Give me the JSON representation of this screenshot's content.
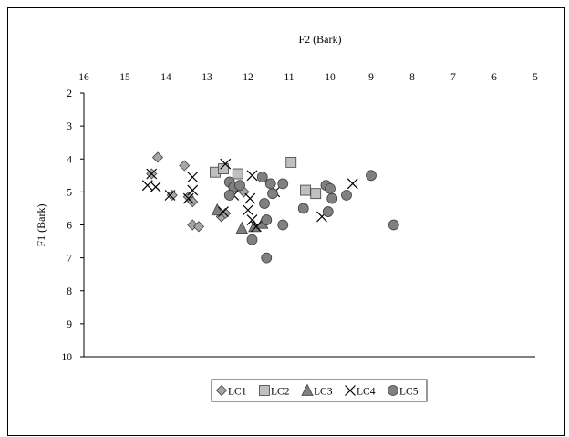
{
  "chart_data": {
    "type": "scatter",
    "title": "",
    "xlabel": "F2 (Bark)",
    "ylabel": "F1 (Bark)",
    "xlim": [
      16,
      5
    ],
    "ylim": [
      10,
      2
    ],
    "x_reversed": true,
    "y_reversed": true,
    "x_axis_position": "top",
    "xticks": [
      16,
      15,
      14,
      13,
      12,
      11,
      10,
      9,
      8,
      7,
      6,
      5
    ],
    "yticks": [
      2,
      3,
      4,
      5,
      6,
      7,
      8,
      9,
      10
    ],
    "grid": false,
    "legend_position": "bottom-center",
    "series": [
      {
        "name": "LC1",
        "marker": "diamond",
        "color": "#a6a6a6",
        "points": [
          [
            14.2,
            3.95
          ],
          [
            14.35,
            4.45
          ],
          [
            13.55,
            4.2
          ],
          [
            13.85,
            5.1
          ],
          [
            13.45,
            5.15
          ],
          [
            13.35,
            5.3
          ],
          [
            13.35,
            6.0
          ],
          [
            13.2,
            6.05
          ],
          [
            12.65,
            5.75
          ],
          [
            12.55,
            5.65
          ],
          [
            12.1,
            5.0
          ]
        ]
      },
      {
        "name": "LC2",
        "marker": "square",
        "color": "#bfbfbf",
        "points": [
          [
            12.8,
            4.4
          ],
          [
            12.6,
            4.3
          ],
          [
            12.25,
            4.45
          ],
          [
            10.95,
            4.1
          ],
          [
            10.6,
            4.95
          ],
          [
            10.35,
            5.05
          ]
        ]
      },
      {
        "name": "LC3",
        "marker": "triangle",
        "color": "#7f7f7f",
        "points": [
          [
            12.75,
            5.55
          ],
          [
            12.15,
            6.1
          ],
          [
            11.85,
            6.05
          ],
          [
            11.65,
            5.95
          ]
        ]
      },
      {
        "name": "LC4",
        "marker": "x",
        "color": "#000000",
        "points": [
          [
            14.35,
            4.45
          ],
          [
            14.25,
            4.85
          ],
          [
            14.45,
            4.8
          ],
          [
            13.9,
            5.1
          ],
          [
            13.35,
            4.55
          ],
          [
            13.35,
            4.95
          ],
          [
            13.45,
            5.2
          ],
          [
            12.55,
            4.15
          ],
          [
            12.35,
            5.1
          ],
          [
            12.6,
            5.6
          ],
          [
            11.9,
            4.5
          ],
          [
            11.95,
            5.2
          ],
          [
            12.0,
            5.55
          ],
          [
            11.9,
            5.85
          ],
          [
            11.8,
            6.05
          ],
          [
            11.35,
            5.0
          ],
          [
            10.2,
            5.75
          ],
          [
            9.45,
            4.75
          ]
        ]
      },
      {
        "name": "LC5",
        "marker": "circle",
        "color": "#808080",
        "points": [
          [
            12.45,
            4.7
          ],
          [
            12.35,
            4.85
          ],
          [
            12.2,
            4.8
          ],
          [
            12.45,
            5.1
          ],
          [
            11.65,
            4.55
          ],
          [
            11.45,
            4.75
          ],
          [
            11.4,
            5.05
          ],
          [
            11.15,
            4.75
          ],
          [
            11.6,
            5.35
          ],
          [
            11.55,
            5.85
          ],
          [
            11.15,
            6.0
          ],
          [
            11.9,
            6.45
          ],
          [
            11.55,
            7.0
          ],
          [
            10.65,
            5.5
          ],
          [
            10.1,
            4.8
          ],
          [
            10.0,
            4.9
          ],
          [
            9.95,
            5.2
          ],
          [
            9.6,
            5.1
          ],
          [
            10.05,
            5.6
          ],
          [
            9.0,
            4.5
          ],
          [
            8.45,
            6.0
          ]
        ]
      }
    ]
  }
}
